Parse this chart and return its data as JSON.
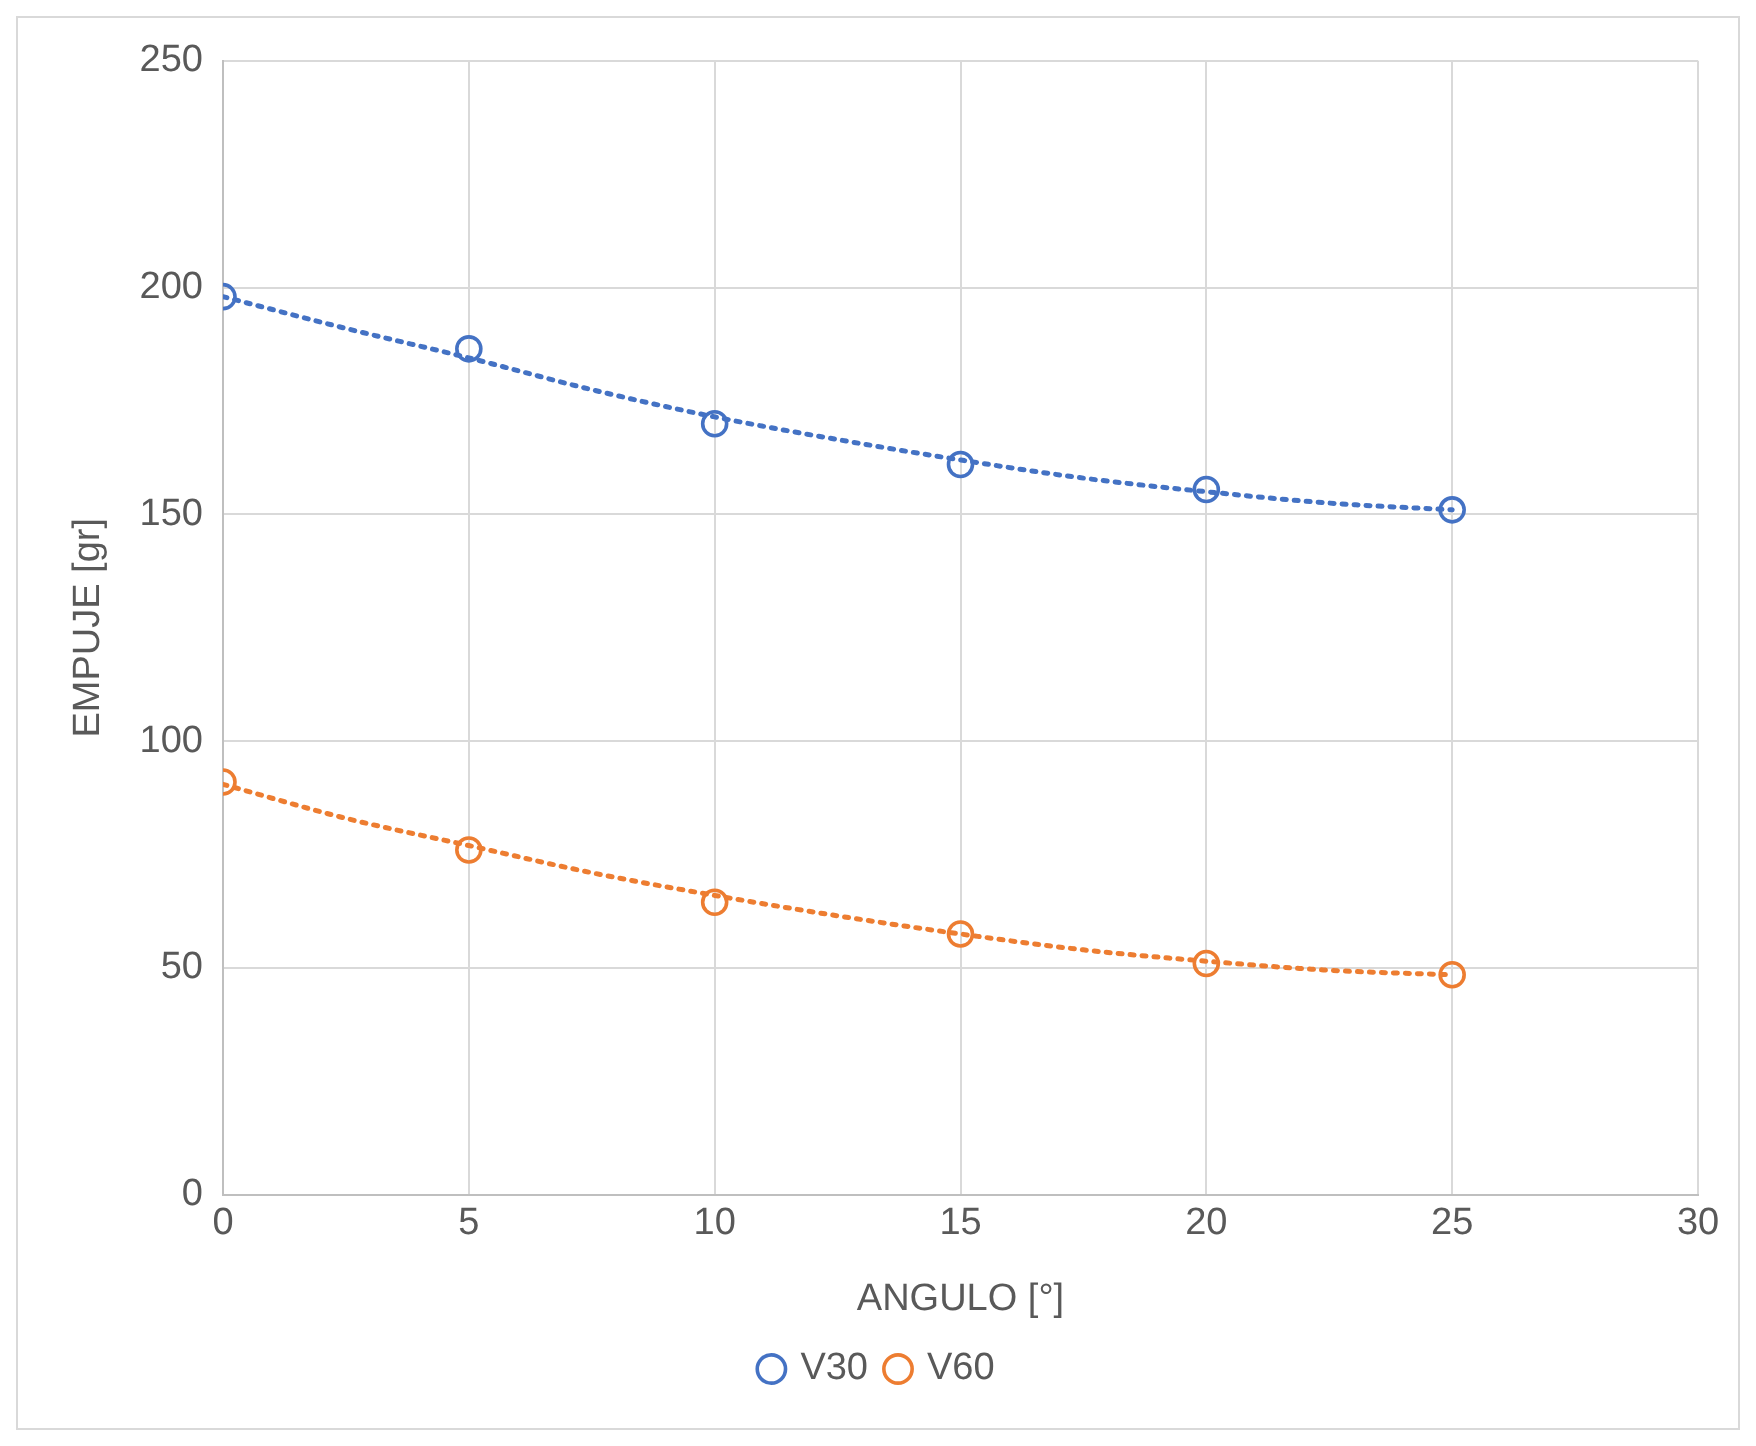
{
  "chart_data": {
    "type": "scatter",
    "xlabel": "ANGULO [°]",
    "ylabel": "EMPUJE [gr]",
    "xlim": [
      0,
      30
    ],
    "xticks": [
      0,
      5,
      10,
      15,
      20,
      25,
      30
    ],
    "ylim": [
      0,
      250
    ],
    "yticks": [
      0,
      50,
      100,
      150,
      200,
      250
    ],
    "grid": true,
    "legend": "bottom",
    "series": [
      {
        "name": "V30",
        "color": "#4472c4",
        "marker": "circle",
        "x": [
          0,
          5,
          10,
          15,
          20,
          25
        ],
        "values": [
          198,
          186.5,
          170,
          161,
          155.5,
          151
        ]
      },
      {
        "name": "V60",
        "color": "#ed7d31",
        "marker": "circle",
        "x": [
          0,
          5,
          10,
          15,
          20,
          25
        ],
        "values": [
          91,
          76,
          64.5,
          57.5,
          51,
          48.5
        ]
      },
      {
        "type": "line",
        "color": "#4472c4",
        "marker": "none",
        "line_style": "dotted",
        "x": [
          0,
          2.5,
          5,
          7.5,
          10,
          12.5,
          15,
          17.5,
          20,
          22.5,
          25
        ],
        "values": [
          198,
          191,
          184.5,
          177.5,
          171.5,
          166.5,
          162,
          158,
          155,
          152.5,
          151
        ]
      },
      {
        "type": "line",
        "color": "#ed7d31",
        "marker": "none",
        "line_style": "dotted",
        "x": [
          0,
          2.5,
          5,
          7.5,
          10,
          12.5,
          15,
          17.5,
          20,
          22.5,
          25
        ],
        "values": [
          90.5,
          83,
          77,
          71,
          66,
          61.5,
          57.5,
          54,
          51.5,
          49.5,
          48.5
        ]
      }
    ]
  }
}
